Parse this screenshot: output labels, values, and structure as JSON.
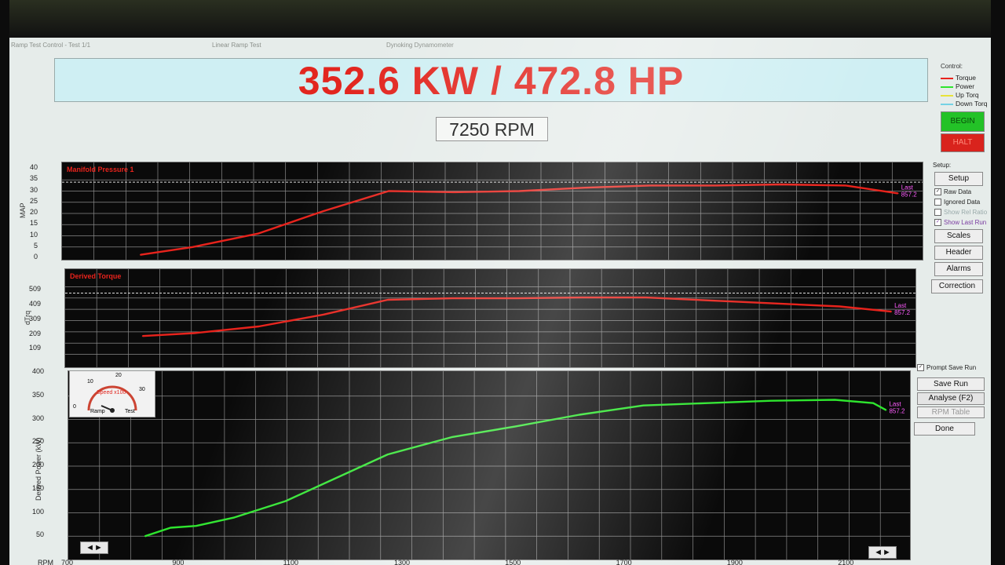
{
  "window": {
    "title_left": "Ramp Test Control - Test 1/1",
    "title_mid": "Linear Ramp Test",
    "title_center": "Dynoking Dynamometer"
  },
  "header": {
    "power_readout": "352.6 KW / 472.8 HP",
    "rpm_readout": "7250 RPM"
  },
  "control": {
    "title": "Control:",
    "legend": [
      {
        "label": "Torque",
        "color": "#e8231c"
      },
      {
        "label": "Power",
        "color": "#2ee52e"
      },
      {
        "label": "Up Torq",
        "color": "#e8e23a"
      },
      {
        "label": "Down Torq",
        "color": "#74d2e4"
      }
    ],
    "begin_label": "BEGIN",
    "halt_label": "HALT"
  },
  "setup": {
    "title": "Setup:",
    "setup_label": "Setup",
    "checkboxes": [
      {
        "label": "Raw Data",
        "checked": true
      },
      {
        "label": "Ignored Data",
        "checked": false
      },
      {
        "label": "Show Rel Ratio",
        "checked": false
      },
      {
        "label": "Show Last Run",
        "checked": true
      }
    ],
    "scales_label": "Scales",
    "header_label": "Header",
    "alarms_label": "Alarms",
    "correction_label": "Correction"
  },
  "run_controls": {
    "prompt_save_label": "Prompt Save Run",
    "save_run_label": "Save Run",
    "analyse_label": "Analyse (F2)",
    "rpm_table_label": "RPM Table",
    "done_label": "Done"
  },
  "gauge": {
    "label": "Speed x100",
    "ticks": [
      "0",
      "10",
      "20",
      "30"
    ],
    "ramp_label": "Ramp",
    "test_label": "Test"
  },
  "chart_data": [
    {
      "type": "line",
      "title": "Manifold Pressure 1",
      "ylabel": "MAP",
      "ylim": [
        0,
        40
      ],
      "yticks": [
        "0",
        "5",
        "10",
        "15",
        "20",
        "25",
        "30",
        "35",
        "40"
      ],
      "last_label": "Last",
      "last_value": "857.2",
      "series": [
        {
          "color": "#e8231c",
          "x": [
            1300,
            1700,
            2200,
            2700,
            3200,
            3700,
            4200,
            4700,
            5200,
            5700,
            6200,
            6700,
            7100
          ],
          "y": [
            1.5,
            5,
            11,
            21,
            30,
            29.5,
            30,
            31.5,
            32.5,
            32.5,
            33,
            32.5,
            29
          ]
        }
      ]
    },
    {
      "type": "line",
      "title": "Derived Torque",
      "ylabel": "dTrq",
      "ylim": [
        0,
        609
      ],
      "yticks": [
        "509",
        "409",
        "309",
        "209",
        "109"
      ],
      "last_label": "Last",
      "last_value": "857.2",
      "series": [
        {
          "color": "#e8231c",
          "x": [
            1300,
            1700,
            2200,
            2700,
            3200,
            3700,
            4200,
            4700,
            5200,
            5700,
            6200,
            6700,
            7100
          ],
          "y": [
            200,
            220,
            265,
            345,
            445,
            455,
            455,
            460,
            460,
            440,
            420,
            400,
            365
          ]
        }
      ]
    },
    {
      "type": "line",
      "title": "",
      "ylabel": "Derived Power (kW)",
      "ylim": [
        0,
        400
      ],
      "yticks": [
        "50",
        "100",
        "150",
        "200",
        "250",
        "300",
        "350",
        "400"
      ],
      "last_label": "Last",
      "last_value": "857.2",
      "series": [
        {
          "color": "#2ee52e",
          "x": [
            1300,
            1500,
            1700,
            2000,
            2400,
            2800,
            3200,
            3700,
            4200,
            4700,
            5200,
            5700,
            6200,
            6700,
            7000,
            7100
          ],
          "y": [
            50,
            68,
            72,
            90,
            125,
            175,
            225,
            262,
            285,
            310,
            330,
            335,
            340,
            342,
            335,
            320
          ]
        }
      ],
      "x_axis_label": "RPM",
      "x_ticks": [
        "700",
        "900",
        "1100",
        "1300",
        "1500",
        "1700",
        "1900",
        "2100"
      ]
    }
  ]
}
